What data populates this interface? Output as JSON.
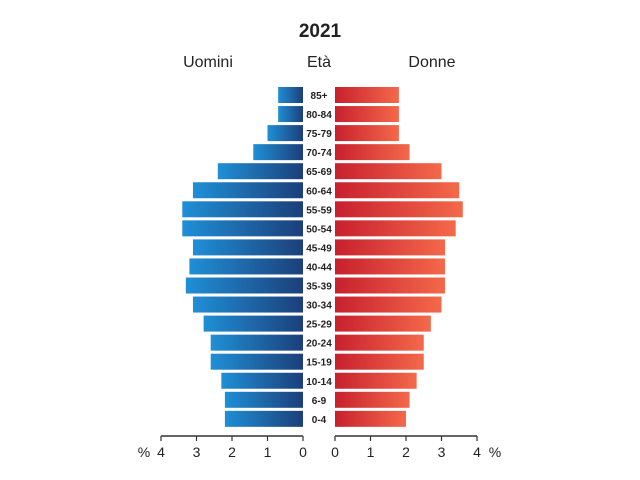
{
  "chart_data": {
    "type": "bar",
    "title": "2021",
    "left_label": "Uomini",
    "center_label": "Età",
    "right_label": "Donne",
    "unit_symbol": "%",
    "categories": [
      "85+",
      "80-84",
      "75-79",
      "70-74",
      "65-69",
      "60-64",
      "55-59",
      "50-54",
      "45-49",
      "40-44",
      "35-39",
      "30-34",
      "25-29",
      "20-24",
      "15-19",
      "10-14",
      "6-9",
      "0-4"
    ],
    "series": [
      {
        "name": "Uomini",
        "values": [
          0.7,
          0.7,
          1.0,
          1.4,
          2.4,
          3.1,
          3.4,
          3.4,
          3.1,
          3.2,
          3.3,
          3.1,
          2.8,
          2.6,
          2.6,
          2.3,
          2.2,
          2.2
        ]
      },
      {
        "name": "Donne",
        "values": [
          1.8,
          1.8,
          1.8,
          2.1,
          3.0,
          3.5,
          3.6,
          3.4,
          3.1,
          3.1,
          3.1,
          3.0,
          2.7,
          2.5,
          2.5,
          2.3,
          2.1,
          2.0
        ]
      }
    ],
    "xlim": [
      0,
      4
    ],
    "ticks": [
      "0",
      "1",
      "2",
      "3",
      "4"
    ],
    "colors": {
      "men_light": "#1f8fd6",
      "men_dark": "#1c3f7a",
      "women_dark": "#c8202e",
      "women_light": "#f4694a",
      "axis": "#333333"
    }
  }
}
